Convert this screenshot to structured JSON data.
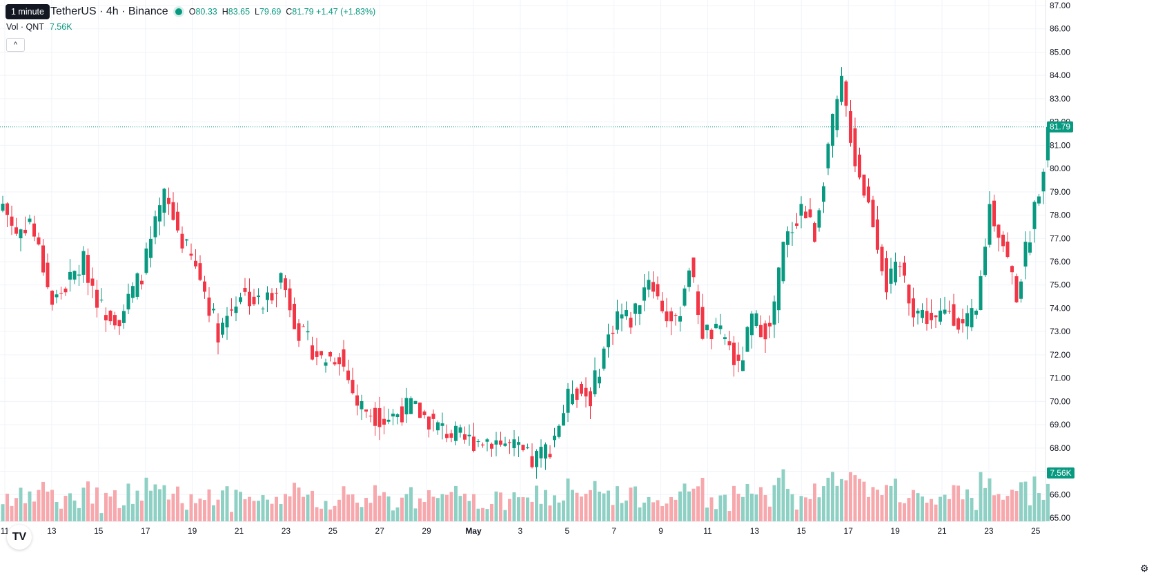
{
  "header": {
    "tooltip": "1 minute",
    "symbol": "TetherUS · 4h · Binance",
    "ohlc": [
      {
        "k": "O",
        "v": "80.33"
      },
      {
        "k": "H",
        "v": "83.65"
      },
      {
        "k": "L",
        "v": "79.69"
      },
      {
        "k": "C",
        "v": "81.79 +1.47 (+1.83%)"
      }
    ],
    "volume_label": "Vol · QNT",
    "volume_value": "7.56K",
    "collapse_glyph": "^"
  },
  "colors": {
    "up": "#089981",
    "down": "#f23645",
    "up_vol": "#8fd0c4",
    "down_vol": "#f7a8ad",
    "grid": "#f0f3fa"
  },
  "icons": {
    "logo": "tradingview-logo-icon",
    "settings": "gear-icon"
  },
  "chart_data": {
    "type": "candlestick",
    "x_ticks": [
      "11",
      "13",
      "15",
      "17",
      "19",
      "21",
      "23",
      "25",
      "27",
      "29",
      "May",
      "3",
      "5",
      "7",
      "9",
      "11",
      "13",
      "15",
      "17",
      "19",
      "21",
      "23",
      "25"
    ],
    "y_ticks": [
      "87.00",
      "86.00",
      "85.00",
      "84.00",
      "83.00",
      "82.00",
      "81.00",
      "80.00",
      "79.00",
      "78.00",
      "77.00",
      "76.00",
      "75.00",
      "74.00",
      "73.00",
      "72.00",
      "71.00",
      "70.00",
      "69.00",
      "68.00",
      "67.00",
      "66.00",
      "65.00"
    ],
    "ylim": [
      64.8,
      87.2
    ],
    "last_price": 81.79,
    "last_price_label": "81.79",
    "last_volume_label": "7.56K",
    "close_path": [
      [
        0,
        78.5
      ],
      [
        3,
        77.2
      ],
      [
        6,
        77.8
      ],
      [
        9,
        75.8
      ],
      [
        11,
        74.2
      ],
      [
        15,
        75.2
      ],
      [
        18,
        76.0
      ],
      [
        22,
        74.0
      ],
      [
        26,
        73.6
      ],
      [
        31,
        75.5
      ],
      [
        36,
        78.8
      ],
      [
        40,
        76.9
      ],
      [
        44,
        75.3
      ],
      [
        48,
        73.0
      ],
      [
        53,
        74.7
      ],
      [
        58,
        74.1
      ],
      [
        62,
        75.4
      ],
      [
        66,
        73.0
      ],
      [
        71,
        71.8
      ],
      [
        75,
        72.0
      ],
      [
        79,
        69.9
      ],
      [
        85,
        69.2
      ],
      [
        91,
        69.8
      ],
      [
        97,
        68.9
      ],
      [
        103,
        68.3
      ],
      [
        109,
        68.4
      ],
      [
        114,
        68.0
      ],
      [
        118,
        67.4
      ],
      [
        122,
        68.1
      ],
      [
        127,
        70.6
      ],
      [
        131,
        70.2
      ],
      [
        134,
        72.2
      ],
      [
        137,
        73.8
      ],
      [
        140,
        73.5
      ],
      [
        144,
        75.4
      ],
      [
        147,
        74.0
      ],
      [
        150,
        73.2
      ],
      [
        153,
        75.9
      ],
      [
        156,
        73.0
      ],
      [
        161,
        72.8
      ],
      [
        164,
        71.3
      ],
      [
        167,
        73.5
      ],
      [
        171,
        73.0
      ],
      [
        174,
        76.6
      ],
      [
        178,
        78.4
      ],
      [
        181,
        77.2
      ],
      [
        184,
        81.0
      ],
      [
        187,
        83.6
      ],
      [
        190,
        80.4
      ],
      [
        194,
        77.8
      ],
      [
        197,
        75.0
      ],
      [
        200,
        75.8
      ],
      [
        203,
        74.0
      ],
      [
        208,
        73.4
      ],
      [
        211,
        74.0
      ],
      [
        214,
        73.2
      ],
      [
        217,
        73.7
      ],
      [
        220,
        78.4
      ],
      [
        223,
        76.8
      ],
      [
        226,
        74.6
      ],
      [
        229,
        77.3
      ],
      [
        232,
        80.3
      ],
      [
        233,
        81.79
      ]
    ]
  }
}
